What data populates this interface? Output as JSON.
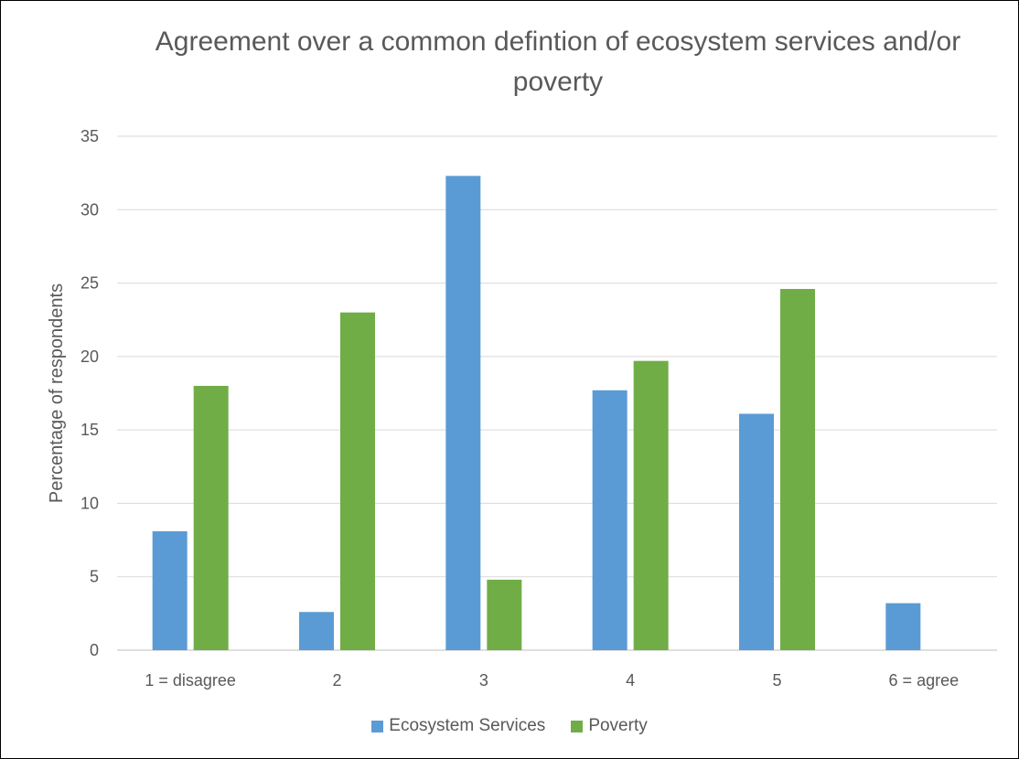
{
  "chart_data": {
    "type": "bar",
    "title": "Agreement over a common defintion of ecosystem services and/or poverty",
    "xlabel": "",
    "ylabel": "Percentage of respondents",
    "categories": [
      "1 = disagree",
      "2",
      "3",
      "4",
      "5",
      "6 = agree"
    ],
    "ylim": [
      0,
      35
    ],
    "yticks": [
      0,
      5,
      10,
      15,
      20,
      25,
      30,
      35
    ],
    "grid": true,
    "legend_position": "bottom",
    "series": [
      {
        "name": "Ecosystem Services",
        "color": "#5B9BD5",
        "values": [
          8.1,
          2.6,
          32.3,
          17.7,
          16.1,
          3.2
        ]
      },
      {
        "name": "Poverty",
        "color": "#70AD47",
        "values": [
          18.0,
          23.0,
          4.8,
          19.7,
          24.6,
          0
        ]
      }
    ]
  }
}
